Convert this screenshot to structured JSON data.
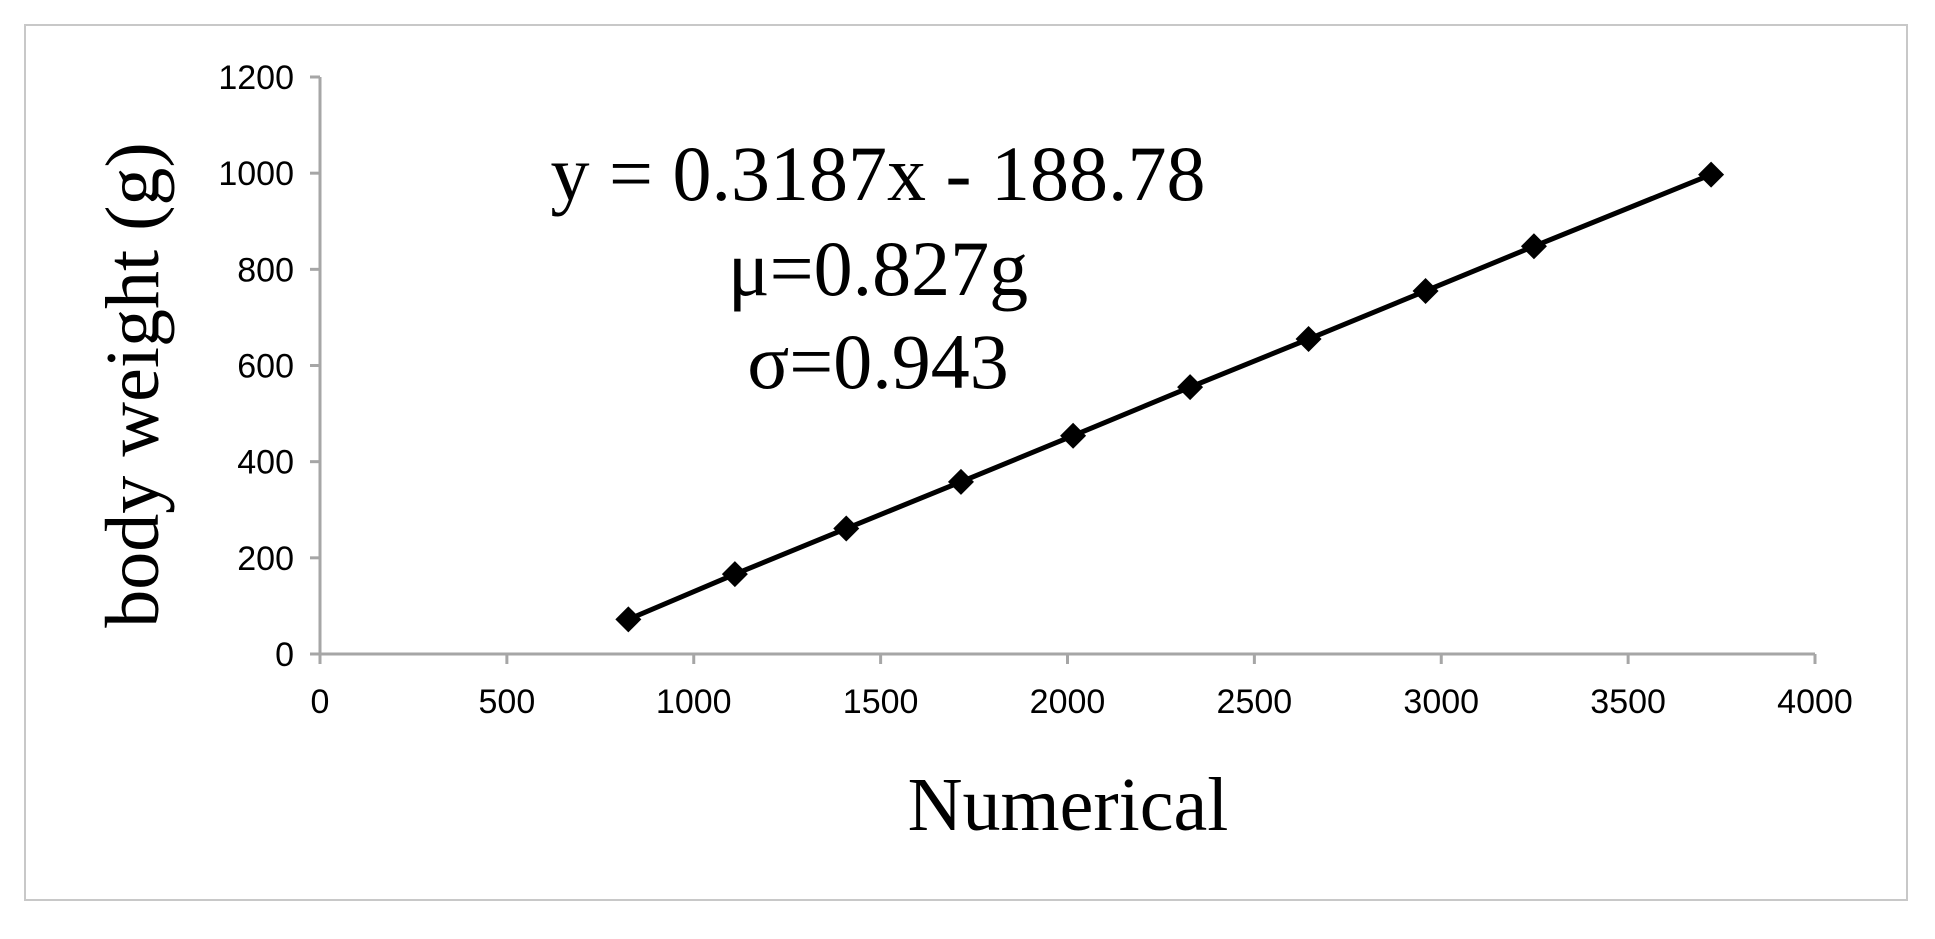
{
  "chart_data": {
    "type": "scatter",
    "xlabel": "Numerical",
    "ylabel": "body weight (g)",
    "xlim": [
      0,
      4000
    ],
    "ylim": [
      0,
      1200
    ],
    "xticks": [
      "0",
      "500",
      "1000",
      "1500",
      "2000",
      "2500",
      "3000",
      "3500",
      "4000"
    ],
    "yticks": [
      "0",
      "200",
      "400",
      "600",
      "800",
      "1000",
      "1200"
    ],
    "grid": false,
    "series": [
      {
        "marker": "diamond",
        "color": "#000000",
        "line": "straight",
        "points": [
          {
            "x": 825,
            "y": 72
          },
          {
            "x": 1110,
            "y": 166
          },
          {
            "x": 1408,
            "y": 261
          },
          {
            "x": 1715,
            "y": 358
          },
          {
            "x": 2015,
            "y": 454
          },
          {
            "x": 2328,
            "y": 555
          },
          {
            "x": 2645,
            "y": 655
          },
          {
            "x": 2958,
            "y": 755
          },
          {
            "x": 3248,
            "y": 848
          },
          {
            "x": 3722,
            "y": 997
          }
        ]
      }
    ],
    "annotations": [
      "y = 0.3187x - 188.78",
      "μ=0.827g",
      "σ=0.943"
    ],
    "colors": {
      "axis": "#a6a6a6",
      "frame": "#c8c8c8",
      "data": "#000000"
    }
  }
}
